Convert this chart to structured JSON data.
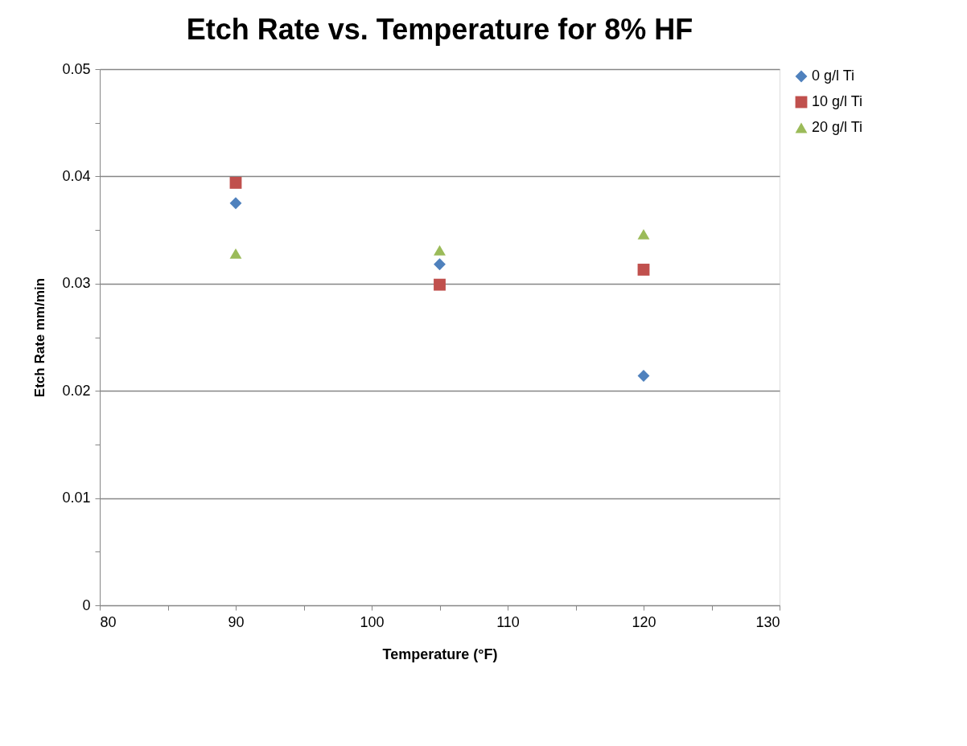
{
  "chart_data": {
    "type": "scatter",
    "title": "Etch Rate vs. Temperature for 8% HF",
    "xlabel": "Temperature (°F)",
    "ylabel": "Etch Rate mm/min",
    "x": [
      90,
      105,
      120
    ],
    "series": [
      {
        "name": "0 g/l Ti",
        "color": "#4f81bd",
        "marker": "diamond",
        "values": [
          0.0375,
          0.0318,
          0.0214
        ]
      },
      {
        "name": "10 g/l Ti",
        "color": "#c0504d",
        "marker": "square",
        "values": [
          0.0394,
          0.0299,
          0.0313
        ]
      },
      {
        "name": "20 g/l Ti",
        "color": "#9bbb59",
        "marker": "triangle",
        "values": [
          0.0328,
          0.0331,
          0.0346
        ]
      }
    ],
    "xlim": [
      80,
      130
    ],
    "xticks": [
      80,
      {
        "value": 85,
        "label": null
      },
      90,
      {
        "value": 95,
        "label": null
      },
      100,
      {
        "value": 105,
        "label": null
      },
      110,
      {
        "value": 115,
        "label": null
      },
      120,
      {
        "value": 125,
        "label": null
      },
      130
    ],
    "ylim": [
      0,
      0.05
    ],
    "yticks": [
      0,
      {
        "value": 0.005,
        "label": null
      },
      0.01,
      {
        "value": 0.015,
        "label": null
      },
      0.02,
      {
        "value": 0.025,
        "label": null
      },
      0.03,
      {
        "value": 0.035,
        "label": null
      },
      0.04,
      {
        "value": 0.045,
        "label": null
      },
      0.05
    ],
    "grid": "y",
    "legend": "right"
  }
}
